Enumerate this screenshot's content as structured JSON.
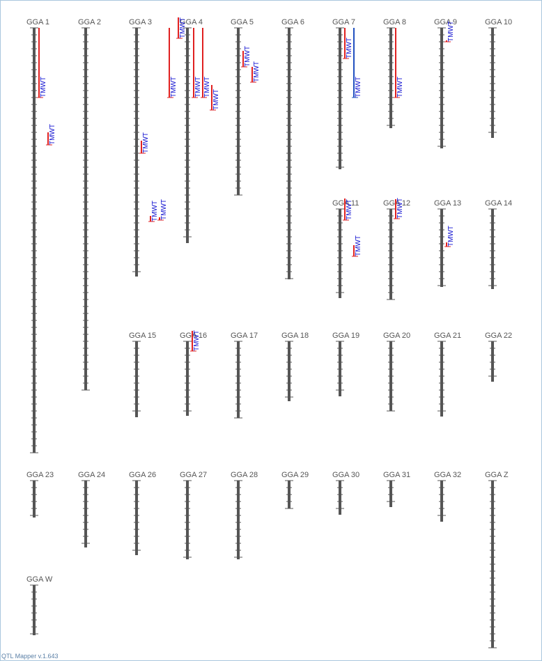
{
  "app": {
    "version_label": "QTL Mapper v.1.643"
  },
  "colors": {
    "chromosome": "#555555",
    "qtl_primary": "#e02020",
    "qtl_secondary": "#2050c0",
    "qtl_label": "#1010d0"
  },
  "chromosomes": [
    {
      "id": "GGA 1",
      "span": [
        0,
        610
      ]
    },
    {
      "id": "GGA 2",
      "span": [
        0,
        520
      ]
    },
    {
      "id": "GGA 3",
      "span": [
        0,
        357
      ]
    },
    {
      "id": "GGA 4",
      "span": [
        0,
        309
      ]
    },
    {
      "id": "GGA 5",
      "span": [
        0,
        240
      ]
    },
    {
      "id": "GGA 6",
      "span": [
        0,
        361
      ]
    },
    {
      "id": "GGA 7",
      "span": [
        0,
        203
      ]
    },
    {
      "id": "GGA 8",
      "span": [
        0,
        144
      ]
    },
    {
      "id": "GGA 9",
      "span": [
        0,
        173
      ]
    },
    {
      "id": "GGA 10",
      "span": [
        0,
        158
      ]
    },
    {
      "id": "GGA 11",
      "span": [
        0,
        128
      ]
    },
    {
      "id": "GGA 12",
      "span": [
        0,
        130
      ]
    },
    {
      "id": "GGA 13",
      "span": [
        0,
        112
      ]
    },
    {
      "id": "GGA 14",
      "span": [
        0,
        115
      ]
    },
    {
      "id": "GGA 15",
      "span": [
        0,
        109
      ]
    },
    {
      "id": "GGA 16",
      "span": [
        0,
        107
      ]
    },
    {
      "id": "GGA 17",
      "span": [
        0,
        110
      ]
    },
    {
      "id": "GGA 18",
      "span": [
        0,
        86
      ]
    },
    {
      "id": "GGA 19",
      "span": [
        0,
        79
      ]
    },
    {
      "id": "GGA 20",
      "span": [
        0,
        100
      ]
    },
    {
      "id": "GGA 21",
      "span": [
        0,
        108
      ]
    },
    {
      "id": "GGA 22",
      "span": [
        0,
        58
      ]
    },
    {
      "id": "GGA 23",
      "span": [
        0,
        53
      ]
    },
    {
      "id": "GGA 24",
      "span": [
        0,
        96
      ]
    },
    {
      "id": "GGA 26",
      "span": [
        0,
        107
      ]
    },
    {
      "id": "GGA 27",
      "span": [
        0,
        113
      ]
    },
    {
      "id": "GGA 28",
      "span": [
        0,
        113
      ]
    },
    {
      "id": "GGA 29",
      "span": [
        0,
        40
      ]
    },
    {
      "id": "GGA 30",
      "span": [
        0,
        49
      ]
    },
    {
      "id": "GGA 31",
      "span": [
        0,
        38
      ]
    },
    {
      "id": "GGA 32",
      "span": [
        0,
        59
      ]
    },
    {
      "id": "GGA Z",
      "span": [
        0,
        240
      ]
    },
    {
      "id": "GGA W",
      "span": [
        0,
        72
      ]
    }
  ],
  "qtls": [
    {
      "chrom": "GGA 1",
      "trait": "TMWT",
      "start": 0,
      "end": 100,
      "color": "qtl_primary"
    },
    {
      "chrom": "GGA 1",
      "trait": "TMWT",
      "start": 150,
      "end": 168,
      "color": "qtl_primary"
    },
    {
      "chrom": "GGA 3",
      "trait": "TMWT",
      "start": 162,
      "end": 180,
      "color": "qtl_primary"
    },
    {
      "chrom": "GGA 3",
      "trait": "TMWT",
      "start": 270,
      "end": 278,
      "color": "qtl_primary"
    },
    {
      "chrom": "GGA 3",
      "trait": "TMWT",
      "start": 272,
      "end": 276,
      "color": "qtl_primary"
    },
    {
      "chrom": "GGA 4",
      "trait": "TMWT",
      "start": -15,
      "end": 15,
      "color": "qtl_primary"
    },
    {
      "chrom": "GGA 4",
      "trait": "TMWT",
      "start": 0,
      "end": 100,
      "color": "qtl_primary"
    },
    {
      "chrom": "GGA 4",
      "trait": "TMWT",
      "start": 0,
      "end": 100,
      "color": "qtl_primary"
    },
    {
      "chrom": "GGA 4",
      "trait": "TMWT",
      "start": 0,
      "end": 100,
      "color": "qtl_primary"
    },
    {
      "chrom": "GGA 4",
      "trait": "TMWT",
      "start": 82,
      "end": 118,
      "color": "qtl_primary"
    },
    {
      "chrom": "GGA 5",
      "trait": "TMWT",
      "start": 33,
      "end": 56,
      "color": "qtl_primary"
    },
    {
      "chrom": "GGA 5",
      "trait": "TMWT",
      "start": 56,
      "end": 78,
      "color": "qtl_primary"
    },
    {
      "chrom": "GGA 7",
      "trait": "TMWT",
      "start": 0,
      "end": 44,
      "color": "qtl_primary"
    },
    {
      "chrom": "GGA 7",
      "trait": "TMWT",
      "start": 0,
      "end": 100,
      "color": "qtl_secondary"
    },
    {
      "chrom": "GGA 8",
      "trait": "TMWT",
      "start": 0,
      "end": 100,
      "color": "qtl_primary"
    },
    {
      "chrom": "GGA 9",
      "trait": "TMWT",
      "start": 18,
      "end": 20,
      "color": "qtl_primary"
    },
    {
      "chrom": "GGA 11",
      "trait": "TMWT",
      "start": -15,
      "end": 16,
      "color": "qtl_primary"
    },
    {
      "chrom": "GGA 11",
      "trait": "TMWT",
      "start": 52,
      "end": 68,
      "color": "qtl_primary"
    },
    {
      "chrom": "GGA 12",
      "trait": "TMWT",
      "start": -14,
      "end": 14,
      "color": "qtl_primary"
    },
    {
      "chrom": "GGA 13",
      "trait": "TMWT",
      "start": 48,
      "end": 54,
      "color": "qtl_primary"
    },
    {
      "chrom": "GGA 16",
      "trait": "TMWT",
      "start": -15,
      "end": 14,
      "color": "qtl_primary"
    }
  ]
}
